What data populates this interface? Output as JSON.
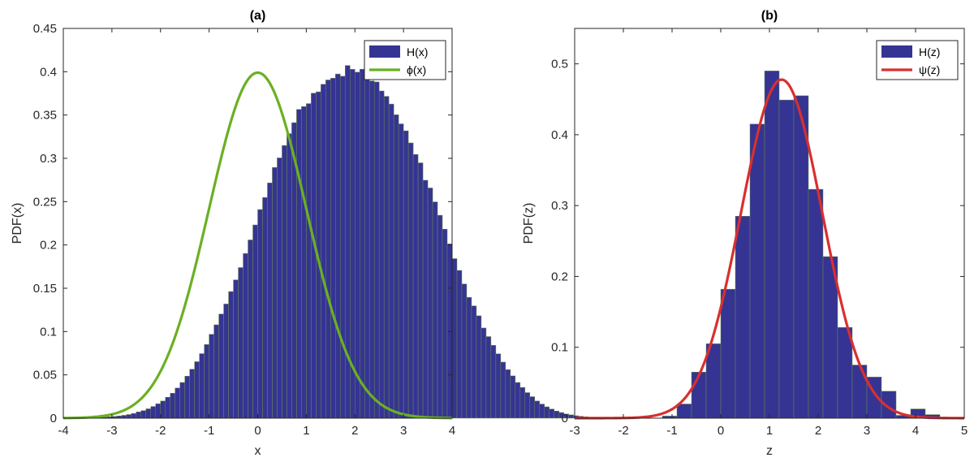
{
  "chart_data": [
    {
      "type": "bar",
      "title": "(a)",
      "xlabel": "x",
      "ylabel": "PDF(x)",
      "xlim": [
        -4,
        4
      ],
      "ylim": [
        0,
        0.45
      ],
      "xticks": [
        -4,
        -3,
        -2,
        -1,
        0,
        1,
        2,
        3,
        4
      ],
      "yticks": [
        0,
        0.05,
        0.1,
        0.15,
        0.2,
        0.25,
        0.3,
        0.35,
        0.4,
        0.45
      ],
      "xtick_labels": [
        "-4",
        "-3",
        "-2",
        "-1",
        "0",
        "1",
        "2",
        "3",
        "4"
      ],
      "ytick_labels": [
        "0",
        "0.05",
        "0.1",
        "0.15",
        "0.2",
        "0.25",
        "0.3",
        "0.35",
        "0.4",
        "0.45"
      ],
      "legend_position": "top-right",
      "colors": {
        "histogram": "#353493",
        "histogram_edge": "#6b8a4a",
        "curve": "#6ab023"
      },
      "histogram": {
        "name": "H(x)",
        "bin_width": 0.1,
        "bin_edges_start": -4,
        "values": [
          0.0001,
          0.0001,
          0.0002,
          0.0003,
          0.0004,
          0.0005,
          0.0007,
          0.001,
          0.0012,
          0.0016,
          0.002,
          0.0026,
          0.0033,
          0.0042,
          0.0055,
          0.0072,
          0.0087,
          0.0108,
          0.0135,
          0.0166,
          0.0198,
          0.0242,
          0.0288,
          0.0348,
          0.0412,
          0.0485,
          0.0565,
          0.0652,
          0.0745,
          0.085,
          0.0968,
          0.1078,
          0.1202,
          0.1318,
          0.1462,
          0.1597,
          0.1739,
          0.1902,
          0.2058,
          0.2231,
          0.2409,
          0.2548,
          0.2716,
          0.2895,
          0.3005,
          0.3148,
          0.3285,
          0.3412,
          0.3565,
          0.3598,
          0.3632,
          0.3752,
          0.3768,
          0.3855,
          0.3905,
          0.3925,
          0.3974,
          0.3948,
          0.4072,
          0.4028,
          0.3995,
          0.4029,
          0.398,
          0.3894,
          0.3882,
          0.3778,
          0.3716,
          0.3627,
          0.3503,
          0.3398,
          0.3318,
          0.3178,
          0.3045,
          0.2948,
          0.2747,
          0.2658,
          0.2497,
          0.2343,
          0.2182,
          0.2012,
          0.1842,
          0.1706,
          0.1549,
          0.1395,
          0.1296,
          0.1182,
          0.1041,
          0.0942,
          0.0841,
          0.0743,
          0.0647,
          0.056,
          0.0488,
          0.0412,
          0.0355,
          0.0295,
          0.0248,
          0.0198,
          0.0163,
          0.0131,
          0.0105,
          0.0082,
          0.0065,
          0.0048,
          0.0038,
          0.0028,
          0.0022,
          0.0016,
          0.0012,
          0.0009,
          0.0006,
          0.0005,
          0.0003,
          0.0002,
          0.0002,
          0.0001,
          0.0001,
          0.0001,
          0.0001,
          0.0001
        ]
      },
      "curve": {
        "name": "ϕ(x)",
        "distribution": "normal",
        "mean": 0,
        "std": 1
      }
    },
    {
      "type": "bar",
      "title": "(b)",
      "xlabel": "z",
      "ylabel": "PDF(z)",
      "xlim": [
        -3,
        5
      ],
      "ylim": [
        0,
        0.55
      ],
      "xticks": [
        -3,
        -2,
        -1,
        0,
        1,
        2,
        3,
        4,
        5
      ],
      "yticks": [
        0,
        0.1,
        0.2,
        0.3,
        0.4,
        0.5
      ],
      "xtick_labels": [
        "-3",
        "-2",
        "-1",
        "0",
        "1",
        "2",
        "3",
        "4",
        "5"
      ],
      "ytick_labels": [
        "0",
        "0.1",
        "0.2",
        "0.3",
        "0.4",
        "0.5"
      ],
      "legend_position": "top-right",
      "colors": {
        "histogram": "#353493",
        "histogram_edge": "#6b8a4a",
        "curve": "#d92f2f"
      },
      "histogram": {
        "name": "H(z)",
        "bin_width": 0.3,
        "bin_edges_start": -1.2,
        "values": [
          0.003,
          0.02,
          0.065,
          0.105,
          0.182,
          0.285,
          0.415,
          0.49,
          0.449,
          0.455,
          0.323,
          0.228,
          0.128,
          0.075,
          0.058,
          0.038,
          0.004,
          0.013,
          0.005
        ]
      },
      "curve": {
        "name": "ψ(z)",
        "distribution": "normal",
        "mean": 1.25,
        "std": 0.835
      }
    }
  ]
}
